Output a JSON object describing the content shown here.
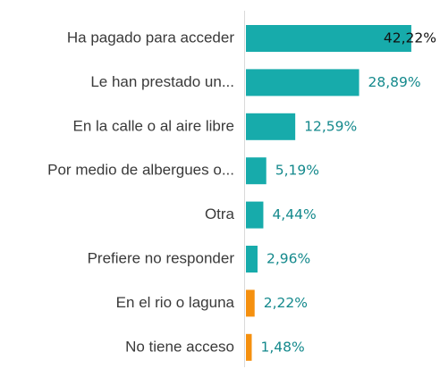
{
  "chart_data": {
    "type": "hbar",
    "categories": [
      "Ha pagado para acceder",
      "Le han prestado un...",
      "En la calle o al aire libre",
      "Por medio de albergues o...",
      "Otra",
      "Prefiere no responder",
      "En el rio o laguna",
      "No tiene acceso"
    ],
    "values": [
      42.22,
      28.89,
      12.59,
      5.19,
      4.44,
      2.96,
      2.22,
      1.48
    ],
    "value_labels": [
      "42,22%",
      "28,89%",
      "12,59%",
      "5,19%",
      "4,44%",
      "2,96%",
      "2,22%",
      "1,48%"
    ],
    "colors": [
      "#17abab",
      "#17abab",
      "#17abab",
      "#17abab",
      "#17abab",
      "#17abab",
      "#f5900f",
      "#f5900f"
    ]
  }
}
